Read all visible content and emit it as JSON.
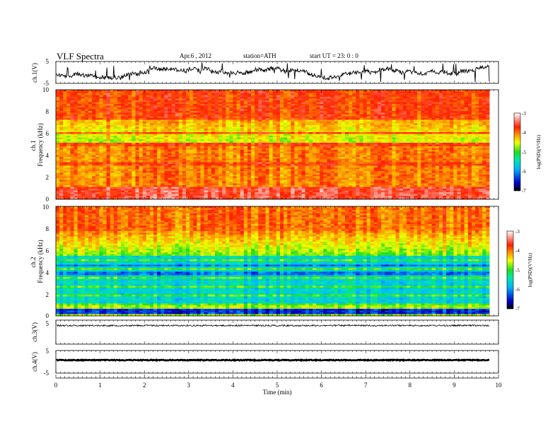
{
  "header": {
    "title": "VLF  Spectra",
    "date": "Apr.6  , 2012",
    "station": "station=ATH",
    "start_ut": "start  UT  =    23: 0  : 0"
  },
  "chart_data": {
    "type": "heatmap",
    "x": {
      "label": "Time  (min)",
      "range": [
        0,
        10
      ],
      "ticks": [
        "0",
        "1",
        "2",
        "3",
        "4",
        "5",
        "6",
        "7",
        "8",
        "9",
        "10"
      ],
      "data_end": 9.8
    },
    "panels": [
      {
        "kind": "waveform",
        "label": "ch.1(V)",
        "range": [
          -5,
          5
        ],
        "ticks": [
          "5",
          "-5"
        ],
        "style": "noisy"
      },
      {
        "kind": "spectrogram",
        "ylabel": "ch.1\nFrequency  (kHz)",
        "range": [
          0,
          10
        ],
        "ticks": [
          "0",
          "2",
          "4",
          "6",
          "8",
          "10"
        ],
        "colorbar": {
          "label": "log(PSD)(V²/Hz)",
          "range": [
            -7,
            -3
          ],
          "ticks": [
            "-3",
            "-4",
            "-5",
            "-6",
            "-7"
          ]
        },
        "profile": "ch1"
      },
      {
        "kind": "spectrogram",
        "ylabel": "ch.2\nFrequency  (kHz)",
        "range": [
          0,
          10
        ],
        "ticks": [
          "0",
          "2",
          "4",
          "6",
          "8",
          "10"
        ],
        "colorbar": {
          "label": "log(PSD)(V²/Hz)",
          "range": [
            -7,
            -3
          ],
          "ticks": [
            "-3",
            "-4",
            "-5",
            "-6",
            "-7"
          ]
        },
        "profile": "ch2"
      },
      {
        "kind": "waveform",
        "label": "ch.3(V)",
        "range": [
          -5,
          5
        ],
        "ticks": [
          "5"
        ],
        "style": "flat"
      },
      {
        "kind": "waveform",
        "label": "ch.4(V)",
        "range": [
          -5,
          5
        ],
        "ticks": [
          "5",
          "-5"
        ],
        "style": "thick"
      }
    ]
  }
}
